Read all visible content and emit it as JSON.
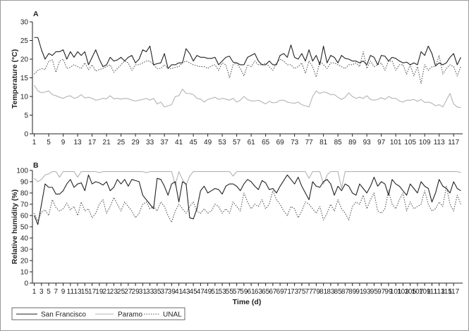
{
  "chart_data": [
    {
      "panel": "A",
      "type": "line",
      "xlabel": "",
      "ylabel": "Temperature (°C)",
      "xlim": [
        1,
        119
      ],
      "ylim": [
        0,
        30
      ],
      "yticks": [
        0,
        5,
        10,
        15,
        20,
        25,
        30
      ],
      "xticks": [
        1,
        5,
        9,
        13,
        17,
        21,
        25,
        29,
        33,
        37,
        41,
        45,
        49,
        53,
        57,
        61,
        65,
        69,
        73,
        77,
        81,
        85,
        89,
        93,
        97,
        101,
        105,
        109,
        113,
        117
      ],
      "grid": false,
      "series": [
        {
          "name": "San Francisco",
          "style": "solid",
          "color": "#222222",
          "values": [
            25.8,
            25.8,
            22.5,
            20,
            21.5,
            21,
            22,
            22,
            22.5,
            20,
            22,
            20.5,
            22,
            21,
            22,
            18.5,
            20.5,
            22.5,
            20,
            18,
            18.5,
            20.5,
            19.5,
            19.8,
            20.5,
            19.5,
            20.5,
            21,
            19,
            20,
            22.5,
            22,
            23.5,
            18.5,
            18.8,
            19,
            21.5,
            17.5,
            18.5,
            18.5,
            19,
            19,
            22.8,
            21.5,
            19.5,
            21,
            20.5,
            20.5,
            20.2,
            20.2,
            20.5,
            18.5,
            19.5,
            20.5,
            20.8,
            19.2,
            19,
            18.5,
            18.5,
            20.5,
            21,
            21.5,
            19.5,
            18.5,
            18.5,
            19.5,
            18.5,
            18.5,
            21,
            21.5,
            20.5,
            23.8,
            20.5,
            20,
            21.5,
            19.5,
            22.5,
            19.5,
            21,
            18.5,
            23.5,
            19,
            21,
            20.5,
            19,
            21,
            20.2,
            20,
            19.5,
            19.5,
            19,
            19.5,
            18.5,
            21,
            20.5,
            18.5,
            21,
            20.8,
            19.5,
            20.5,
            20.2,
            19.5,
            19,
            19.2,
            18.5,
            19,
            18.5,
            22,
            21,
            23.5,
            21.5,
            18.2,
            19,
            18.5,
            19,
            20.5,
            21.5,
            18.5,
            20.5
          ]
        },
        {
          "name": "Paramo",
          "style": "solid",
          "color": "#b3b3b3",
          "values": [
            13,
            11.5,
            11,
            11.2,
            11.5,
            10.5,
            10.2,
            9.8,
            9.5,
            10,
            10.2,
            9.5,
            9.8,
            10.5,
            9.6,
            9.8,
            9.5,
            9,
            9.2,
            9.5,
            9.4,
            10.2,
            9.4,
            9.5,
            9.3,
            9.5,
            9.4,
            9,
            8.8,
            9,
            9.2,
            9.5,
            9,
            9.5,
            8,
            8.5,
            7.2,
            7.5,
            7.8,
            10,
            10.2,
            12,
            10.8,
            10.8,
            10.5,
            9.5,
            9.3,
            8.5,
            9.2,
            9.5,
            9.8,
            9.2,
            9.5,
            9.3,
            9,
            9.5,
            8.5,
            9,
            10,
            9.2,
            8.8,
            8.8,
            9,
            8.5,
            8,
            8.7,
            8.3,
            8.4,
            9,
            9,
            8.5,
            8.3,
            8.2,
            8.5,
            7.8,
            7.5,
            7.2,
            10,
            11.5,
            10.8,
            11.2,
            11,
            10.5,
            10.5,
            9.8,
            9.2,
            9.8,
            11,
            10,
            9.5,
            9.8,
            9.5,
            10.2,
            9.2,
            9,
            9.2,
            9.7,
            9.2,
            10,
            9.5,
            9.5,
            8.8,
            8.5,
            9,
            9,
            9.2,
            8.7,
            9.2,
            8.4,
            8.5,
            8.2,
            7.5,
            7.8,
            7.2,
            9,
            10.8,
            8,
            7.2,
            7
          ]
        },
        {
          "name": "UNAL",
          "style": "dotted",
          "color": "#555555",
          "values": [
            16,
            17,
            17.5,
            17.2,
            19.5,
            19.8,
            16.5,
            19.5,
            20,
            17.5,
            17.8,
            18.5,
            18,
            17.5,
            19,
            17.2,
            18.5,
            16.8,
            17.2,
            17.5,
            18,
            18.5,
            16.5,
            17.5,
            18.5,
            19.5,
            19,
            17,
            18.5,
            18.5,
            19,
            19.5,
            19.5,
            18.5,
            17.5,
            17.5,
            18.5,
            17.5,
            17.5,
            17.8,
            18,
            19,
            19.5,
            19,
            18.5,
            18.2,
            18,
            18,
            17.5,
            18.2,
            18.5,
            17,
            19,
            18.5,
            15,
            18.5,
            19,
            17.5,
            15.5,
            18.5,
            18,
            19.5,
            18.5,
            18.5,
            19,
            18,
            17,
            19,
            20,
            19.5,
            18.5,
            18.5,
            17.5,
            18,
            19,
            16.2,
            19.5,
            18,
            15.2,
            19.5,
            18.5,
            17.5,
            19,
            19,
            18.5,
            18,
            17.5,
            18.5,
            18.5,
            19,
            18,
            22,
            17.5,
            19.5,
            18,
            18.5,
            19,
            17,
            19.5,
            19.5,
            17,
            18.5,
            18.5,
            16,
            18.5,
            15.5,
            18,
            13.5,
            18.5,
            17,
            18,
            18,
            21,
            16,
            17.5,
            18.5,
            18,
            15.5,
            18
          ]
        }
      ]
    },
    {
      "panel": "B",
      "type": "line",
      "xlabel": "Time (d)",
      "ylabel": "Relative humidity (%)",
      "xlim": [
        1,
        119
      ],
      "ylim": [
        0,
        100
      ],
      "yticks": [
        0,
        10,
        20,
        30,
        40,
        50,
        60,
        70,
        80,
        90,
        100
      ],
      "xticks": [
        1,
        3,
        5,
        7,
        9,
        11,
        13,
        15,
        17,
        19,
        21,
        23,
        25,
        27,
        29,
        31,
        33,
        35,
        37,
        39,
        41,
        43,
        45,
        47,
        49,
        51,
        53,
        55,
        57,
        59,
        61,
        63,
        65,
        67,
        69,
        71,
        73,
        75,
        77,
        79,
        81,
        83,
        85,
        87,
        89,
        91,
        93,
        95,
        97,
        99,
        101,
        103,
        105,
        107,
        109,
        111,
        113,
        115,
        117
      ],
      "grid": false,
      "series": [
        {
          "name": "San Francisco",
          "style": "solid",
          "color": "#222222",
          "values": [
            60,
            52,
            70,
            88,
            85,
            85,
            79,
            79,
            82,
            88,
            92,
            85,
            88,
            89,
            82,
            96,
            88,
            90,
            89,
            87,
            90,
            82,
            85,
            92,
            88,
            92,
            86,
            92,
            91,
            90,
            78,
            74,
            70,
            66,
            93,
            92,
            86,
            78,
            88,
            90,
            72,
            90,
            88,
            58,
            57,
            66,
            82,
            86,
            80,
            82,
            84,
            83,
            79,
            86,
            88,
            88,
            86,
            82,
            88,
            92,
            90,
            86,
            83,
            91,
            89,
            83,
            84,
            80,
            86,
            91,
            96,
            92,
            88,
            94,
            86,
            80,
            74,
            90,
            86,
            85,
            90,
            92,
            88,
            78,
            86,
            82,
            88,
            86,
            80,
            78,
            88,
            84,
            80,
            86,
            94,
            86,
            90,
            88,
            78,
            92,
            88,
            86,
            82,
            78,
            88,
            84,
            80,
            90,
            86,
            84,
            72,
            80,
            92,
            86,
            84,
            80,
            90,
            84,
            82
          ]
        },
        {
          "name": "Paramo",
          "style": "solid",
          "color": "#b3b3b3",
          "values": [
            93,
            90,
            92,
            96,
            97,
            99,
            99,
            94,
            99,
            99,
            99,
            99,
            94,
            99,
            99,
            99,
            99,
            99,
            98,
            99,
            99,
            99,
            99,
            99,
            99,
            99,
            99,
            99,
            99,
            99,
            99,
            98,
            99,
            99,
            99,
            99,
            99,
            99,
            99,
            87,
            99,
            92,
            87,
            95,
            99,
            99,
            99,
            99,
            99,
            99,
            99,
            99,
            99,
            99,
            99,
            95,
            99,
            99,
            99,
            99,
            99,
            99,
            99,
            99,
            99,
            99,
            99,
            99,
            99,
            99,
            99,
            99,
            99,
            99,
            99,
            99,
            93,
            99,
            99,
            99,
            88,
            96,
            99,
            99,
            99,
            84,
            99,
            99,
            99,
            99,
            99,
            99,
            99,
            99,
            99,
            99,
            99,
            99,
            99,
            99,
            99,
            99,
            99,
            99,
            99,
            99,
            99,
            99,
            99,
            99,
            99,
            99,
            99,
            99,
            99,
            99,
            99,
            99,
            98
          ]
        },
        {
          "name": "UNAL",
          "style": "dotted",
          "color": "#555555",
          "values": [
            62,
            55,
            63,
            65,
            60,
            74,
            67,
            64,
            66,
            71,
            65,
            68,
            60,
            72,
            64,
            66,
            58,
            62,
            70,
            74,
            62,
            68,
            76,
            70,
            64,
            72,
            68,
            64,
            58,
            62,
            70,
            72,
            66,
            68,
            64,
            72,
            68,
            60,
            54,
            64,
            70,
            66,
            62,
            68,
            72,
            64,
            62,
            66,
            62,
            64,
            70,
            68,
            62,
            66,
            62,
            72,
            68,
            64,
            80,
            72,
            66,
            70,
            68,
            74,
            66,
            70,
            82,
            74,
            70,
            64,
            60,
            68,
            66,
            58,
            64,
            72,
            70,
            66,
            62,
            68,
            56,
            62,
            70,
            64,
            74,
            66,
            62,
            56,
            68,
            72,
            70,
            78,
            66,
            74,
            80,
            64,
            62,
            66,
            82,
            70,
            66,
            74,
            80,
            64,
            72,
            66,
            68,
            70,
            82,
            70,
            64,
            66,
            72,
            68,
            86,
            70,
            64,
            78,
            70
          ]
        }
      ]
    }
  ],
  "panels": {
    "a_label": "A",
    "b_label": "B"
  },
  "legend": {
    "placement": "bottom-left",
    "items": [
      {
        "label": "San Francisco",
        "style": "solid",
        "color": "#222222"
      },
      {
        "label": "Paramo",
        "style": "solid",
        "color": "#b3b3b3"
      },
      {
        "label": "UNAL",
        "style": "dotted",
        "color": "#555555"
      }
    ]
  },
  "colors": {
    "frame_border": "#9a9a9a",
    "axis": "#222222"
  }
}
